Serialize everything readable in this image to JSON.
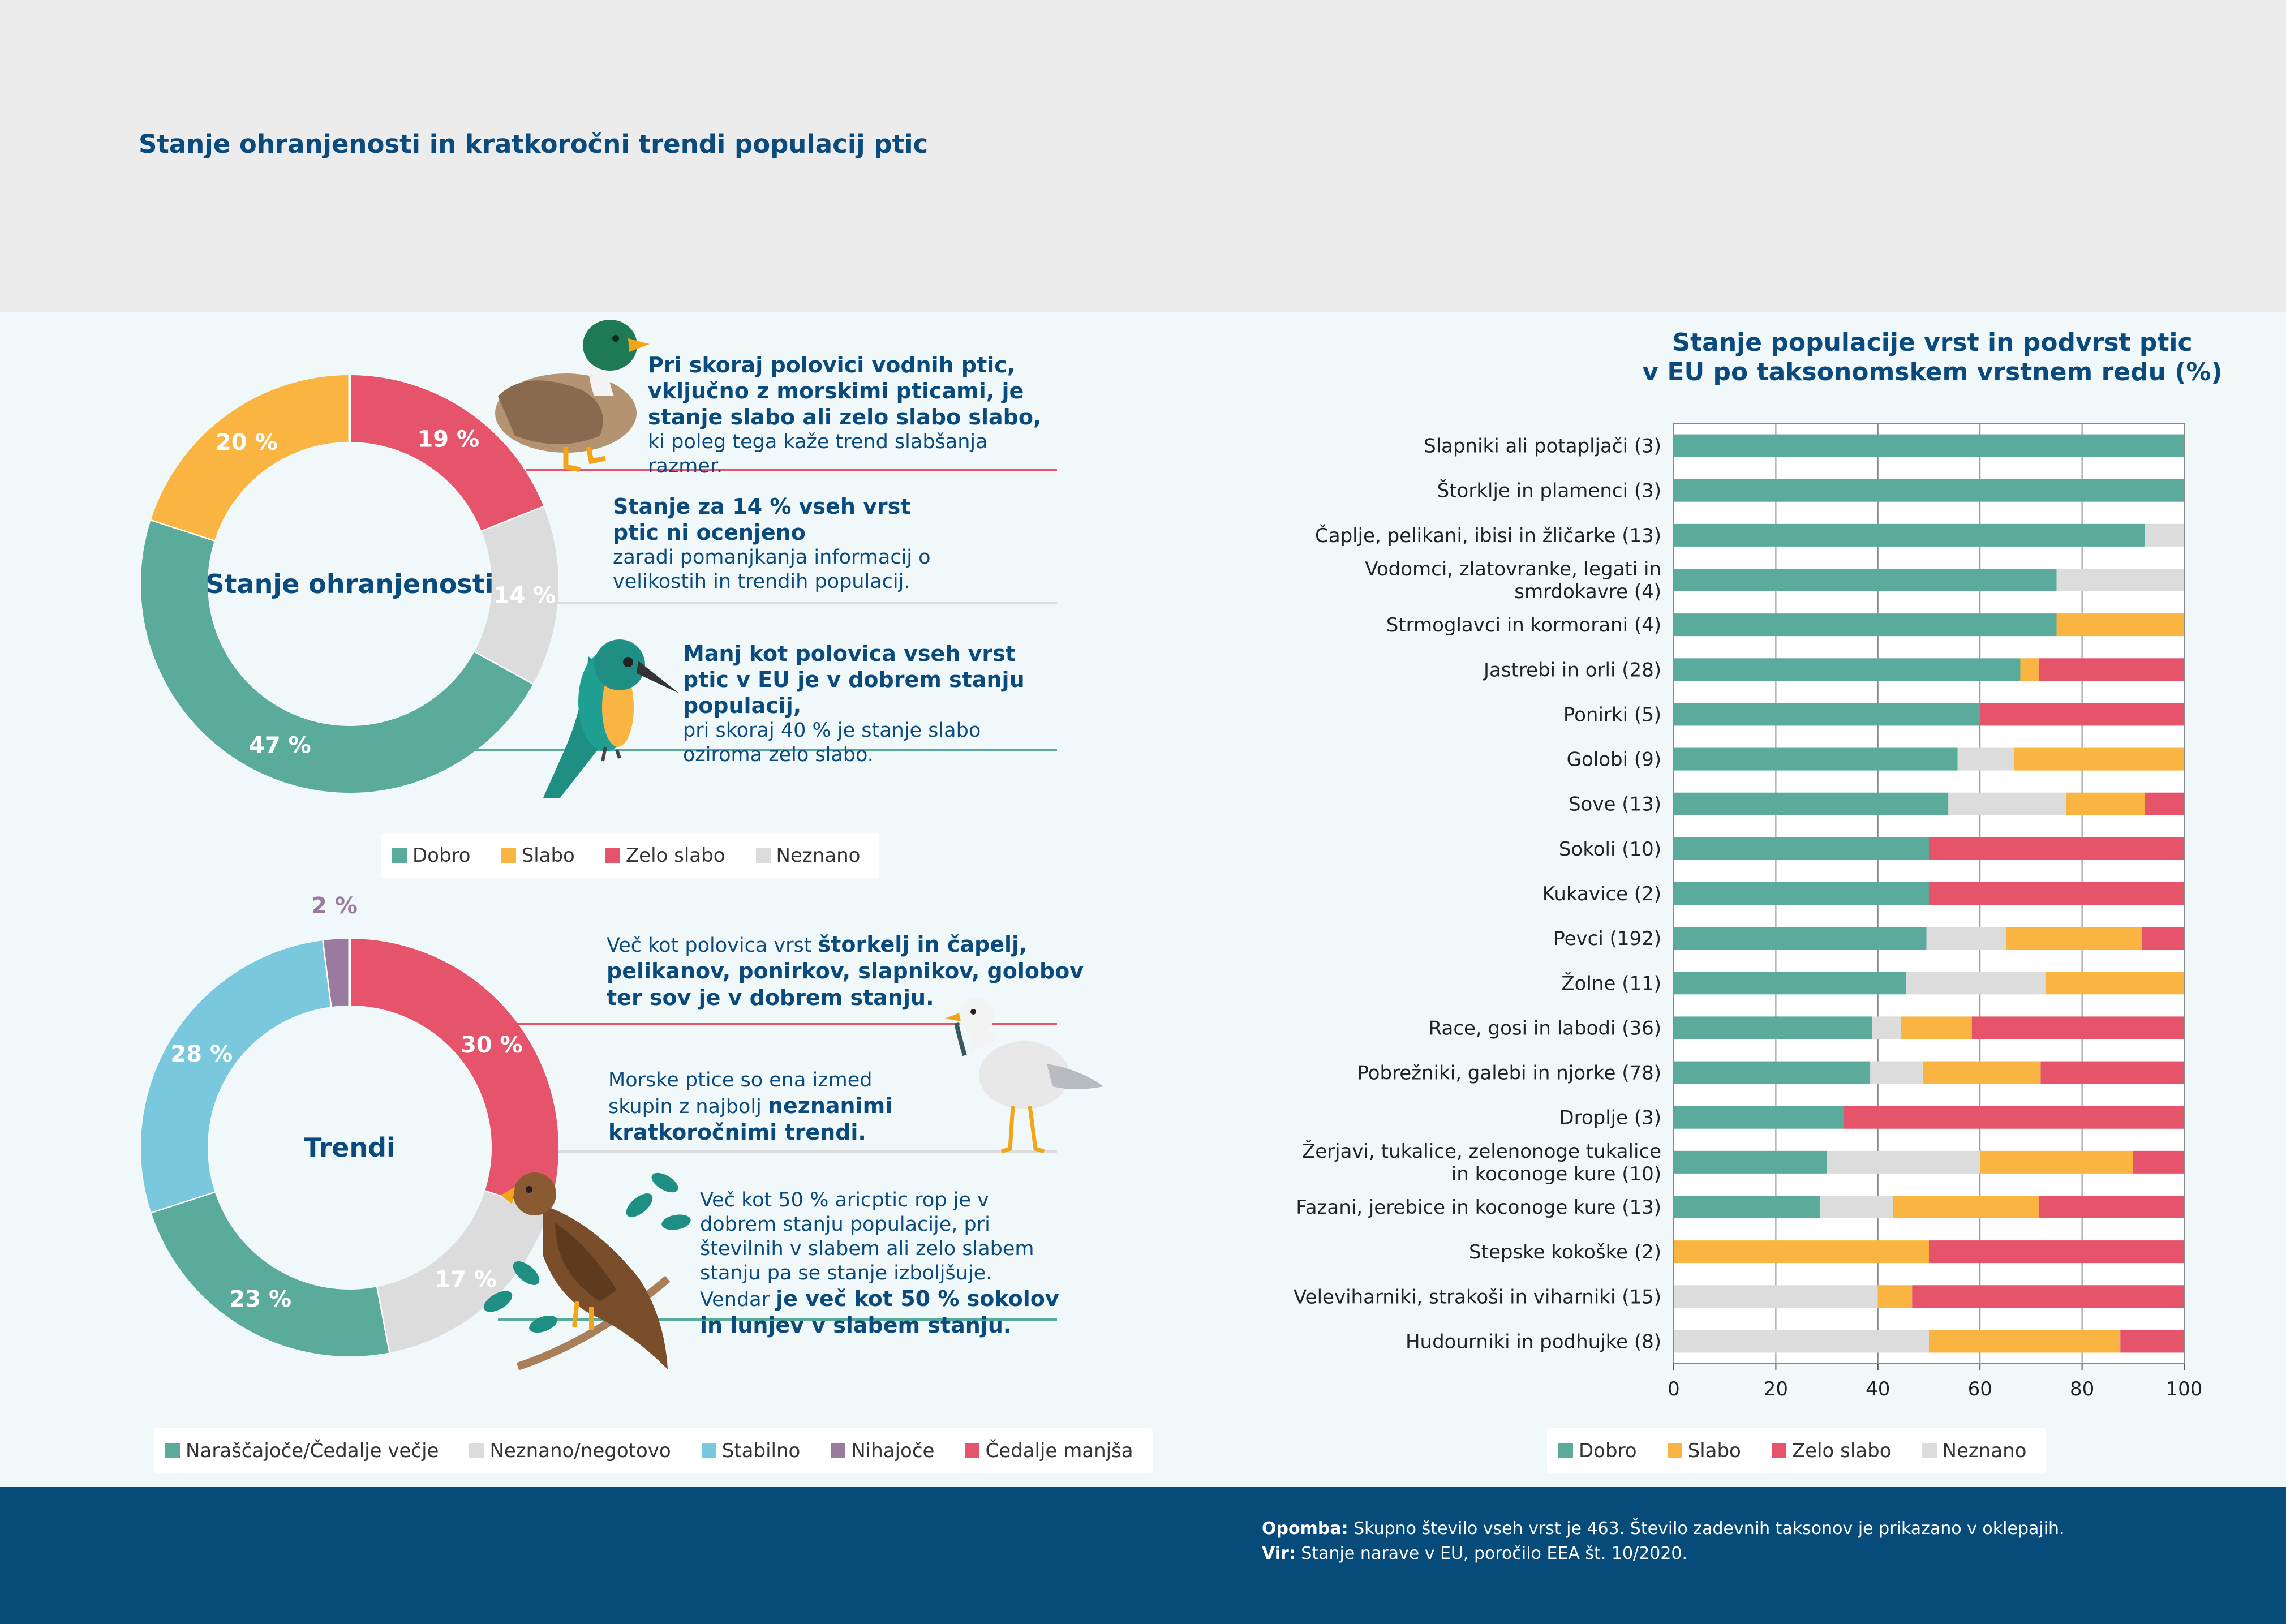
{
  "page_title": "Stanje ohranjenosti in kratkoročni trendi populacij ptic",
  "colors": {
    "dobro": "#5aab9c",
    "slabo": "#f9b442",
    "zelo_slabo": "#e5546b",
    "neznano": "#dcdcdc",
    "stabilno": "#7ac8de",
    "nihajoce": "#9b7aa0"
  },
  "donut1": {
    "center_label": "Stanje ohranjenosti",
    "slices": [
      {
        "name": "Zelo slabo",
        "value": 19,
        "label": "19 %",
        "color": "#e5546b"
      },
      {
        "name": "Neznano",
        "value": 14,
        "label": "14 %",
        "color": "#dcdcdc"
      },
      {
        "name": "Dobro",
        "value": 47,
        "label": "47 %",
        "color": "#5aab9c"
      },
      {
        "name": "Slabo",
        "value": 20,
        "label": "20 %",
        "color": "#f9b442"
      }
    ]
  },
  "donut2": {
    "center_label": "Trendi",
    "slices": [
      {
        "name": "Čedalje manjša",
        "value": 30,
        "label": "30 %",
        "color": "#e5546b"
      },
      {
        "name": "Neznano/negotovo",
        "value": 17,
        "label": "17 %",
        "color": "#dcdcdc"
      },
      {
        "name": "Naraščajoče/Čedalje večje",
        "value": 23,
        "label": "23 %",
        "color": "#5aab9c"
      },
      {
        "name": "Stabilno",
        "value": 28,
        "label": "28 %",
        "color": "#7ac8de"
      },
      {
        "name": "Nihajoče",
        "value": 2,
        "label": "2 %",
        "color": "#9b7aa0"
      }
    ]
  },
  "callouts": {
    "c1_bold": "Pri skoraj polovici vodnih ptic, vključno z morskimi pticami, je stanje slabo ali zelo slabo slabo,",
    "c1_text": "ki poleg tega kaže trend slabšanja razmer.",
    "c2_bold": "Stanje za 14 % vseh vrst ptic ni ocenjeno",
    "c2_text": "zaradi pomanjkanja informacij o velikostih in trendih populacij.",
    "c3_bold": "Manj kot polovica vseh vrst ptic v EU je v dobrem stanju populacij,",
    "c3_text": "pri skoraj 40 % je stanje slabo oziroma zelo slabo.",
    "c4_text": "Več kot polovica vrst ",
    "c4_bold": "štorkelj in čapelj, pelikanov, ponirkov, slapnikov, golobov ter sov je v dobrem stanju.",
    "c5_text": "Morske ptice so ena izmed skupin z najbolj ",
    "c5_bold": "neznanimi kratkoročnimi trendi.",
    "c6_text": "Več kot 50 % aricptic rop je v dobrem stanju populacije, pri številnih v slabem ali zelo slabem stanju pa se stanje izboljšuje. Vendar ",
    "c6_bold": "je več kot 50 % sokolov in lunjev v slabem stanju."
  },
  "legend1": [
    {
      "label": "Dobro",
      "color": "#5aab9c"
    },
    {
      "label": "Slabo",
      "color": "#f9b442"
    },
    {
      "label": "Zelo slabo",
      "color": "#e5546b"
    },
    {
      "label": "Neznano",
      "color": "#dcdcdc"
    }
  ],
  "legend2": [
    {
      "label": "Naraščajoče/Čedalje večje",
      "color": "#5aab9c"
    },
    {
      "label": "Neznano/negotovo",
      "color": "#dcdcdc"
    },
    {
      "label": "Stabilno",
      "color": "#7ac8de"
    },
    {
      "label": "Nihajoče",
      "color": "#9b7aa0"
    },
    {
      "label": "Čedalje manjša",
      "color": "#e5546b"
    }
  ],
  "legend3": [
    {
      "label": "Dobro",
      "color": "#5aab9c"
    },
    {
      "label": "Slabo",
      "color": "#f9b442"
    },
    {
      "label": "Zelo slabo",
      "color": "#e5546b"
    },
    {
      "label": "Neznano",
      "color": "#dcdcdc"
    }
  ],
  "chart_data": {
    "type": "bar",
    "orientation": "horizontal-stacked",
    "title": "Stanje populacije vrst in podvrst ptic v EU po taksonomskem vrstnem redu (%)",
    "title_line1": "Stanje populacije vrst in podvrst ptic",
    "title_line2": "v EU po taksonomskem vrstnem redu (%)",
    "xlim": [
      0,
      100
    ],
    "xticks": [
      0,
      20,
      40,
      60,
      80,
      100
    ],
    "grid": true,
    "categories": [
      "Slapniki ali potapljači (3)",
      "Štorklje in plamenci (3)",
      "Čaplje, pelikani, ibisi in žličarke (13)",
      "Vodomci, zlatovranke, legati in smrdokavre (4)",
      "Strmoglavci in kormorani (4)",
      "Jastrebi in orli (28)",
      "Ponirki (5)",
      "Golobi (9)",
      "Sove (13)",
      "Sokoli (10)",
      "Kukavice (2)",
      "Pevci (192)",
      "Žolne (11)",
      "Race, gosi in labodi (36)",
      "Pobrežniki, galebi in njorke (78)",
      "Droplje (3)",
      "Žerjavi, tukalice, zelenonoge tukalice in koconoge kure (10)",
      "Fazani, jerebice in koconoge kure (13)",
      "Stepske kokoške (2)",
      "Veleviharniki, strakoši in viharniki (15)",
      "Hudourniki in podhujke (8)"
    ],
    "series": [
      {
        "name": "Dobro",
        "color": "#5aab9c",
        "values": [
          100,
          100,
          92.3,
          75,
          75,
          67.9,
          60,
          55.6,
          53.8,
          50,
          50,
          49.5,
          45.5,
          38.9,
          38.5,
          33.3,
          30,
          28.6,
          0,
          0,
          0
        ]
      },
      {
        "name": "Neznano",
        "color": "#dcdcdc",
        "values": [
          0,
          0,
          7.7,
          25,
          0,
          0,
          0,
          11.1,
          23.1,
          0,
          0,
          15.6,
          27.3,
          5.6,
          10.3,
          0,
          30,
          14.3,
          0,
          40,
          50
        ]
      },
      {
        "name": "Slabo",
        "color": "#f9b442",
        "values": [
          0,
          0,
          0,
          0,
          25,
          3.6,
          0,
          33.3,
          15.4,
          0,
          0,
          26.6,
          27.2,
          13.9,
          23.1,
          0,
          30,
          28.6,
          50,
          6.7,
          37.5
        ]
      },
      {
        "name": "Zelo slabo",
        "color": "#e5546b",
        "values": [
          0,
          0,
          0,
          0,
          0,
          28.5,
          40,
          0,
          7.7,
          50,
          50,
          8.3,
          0,
          41.6,
          28.1,
          66.7,
          10,
          28.5,
          50,
          53.3,
          12.5
        ]
      }
    ]
  },
  "footer": {
    "note_label": "Opomba:",
    "note_text": " Skupno število vseh vrst je 463. Število zadevnih taksonov je prikazano v oklepajih.",
    "source_label": "Vir:",
    "source_text": " Stanje narave v EU, poročilo EEA št. 10/2020."
  }
}
